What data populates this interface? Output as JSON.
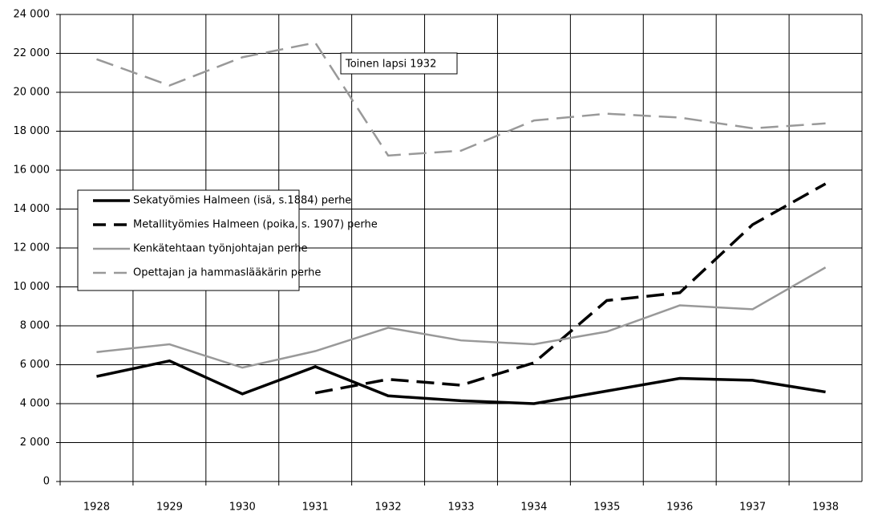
{
  "chart_data": {
    "type": "line",
    "categories": [
      "1928",
      "1929",
      "1930",
      "1931",
      "1932",
      "1933",
      "1934",
      "1935",
      "1936",
      "1937",
      "1938"
    ],
    "series": [
      {
        "name": "Sekatyömies Halmeen (isä, s.1884) perhe",
        "color": "#000000",
        "dashed": false,
        "values": [
          5400,
          6200,
          4500,
          5900,
          4400,
          4150,
          4000,
          4650,
          5300,
          5200,
          4600
        ]
      },
      {
        "name": "Metallityömies Halmeen (poika, s. 1907) perhe",
        "color": "#000000",
        "dashed": true,
        "values": [
          null,
          null,
          null,
          4550,
          5250,
          4950,
          6100,
          9300,
          9700,
          13200,
          15300
        ]
      },
      {
        "name": "Kenkätehtaan työnjohtajan perhe",
        "color": "#999999",
        "dashed": false,
        "values": [
          6650,
          7050,
          5850,
          6700,
          7900,
          7250,
          7050,
          7700,
          9050,
          8850,
          11000
        ]
      },
      {
        "name": "Opettajan ja hammaslääkärin perhe",
        "color": "#999999",
        "dashed": true,
        "values": [
          21700,
          20350,
          21800,
          22550,
          16750,
          17000,
          18550,
          18900,
          18700,
          18150,
          18400
        ]
      }
    ],
    "annotation": "Toinen lapsi 1932",
    "ylim": [
      0,
      24000
    ],
    "yticks": [
      {
        "value": 0,
        "label": "0"
      },
      {
        "value": 2000,
        "label": "2 000"
      },
      {
        "value": 4000,
        "label": "4 000"
      },
      {
        "value": 6000,
        "label": "6 000"
      },
      {
        "value": 8000,
        "label": "8 000"
      },
      {
        "value": 10000,
        "label": "10 000"
      },
      {
        "value": 12000,
        "label": "12 000"
      },
      {
        "value": 14000,
        "label": "14 000"
      },
      {
        "value": 16000,
        "label": "16 000"
      },
      {
        "value": 18000,
        "label": "18 000"
      },
      {
        "value": 20000,
        "label": "20 000"
      },
      {
        "value": 22000,
        "label": "22 000"
      },
      {
        "value": 24000,
        "label": "24 000"
      }
    ],
    "grid": true
  }
}
